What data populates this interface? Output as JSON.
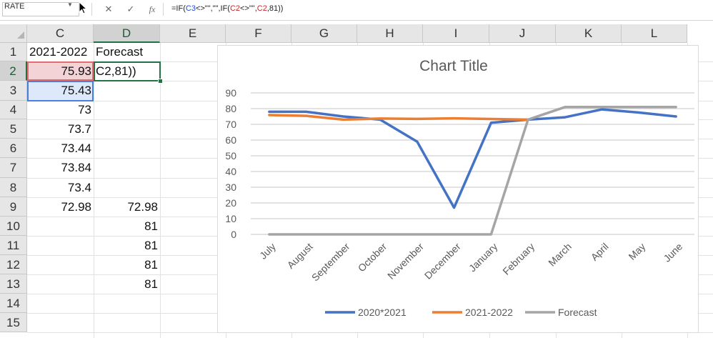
{
  "formula_bar": {
    "name_box": "RATE",
    "formula_parts": [
      {
        "text": "=IF(",
        "cls": ""
      },
      {
        "text": "C3",
        "cls": "fref-blue"
      },
      {
        "text": "<>\"\",\"\",IF(",
        "cls": ""
      },
      {
        "text": "C2",
        "cls": "fref-red"
      },
      {
        "text": "<>\"\",",
        "cls": ""
      },
      {
        "text": "C2",
        "cls": "fref-red"
      },
      {
        "text": ",81))",
        "cls": ""
      }
    ]
  },
  "icons": {
    "cancel": "✕",
    "enter": "✓",
    "fx": "fx"
  },
  "columns": [
    "C",
    "D",
    "E",
    "F",
    "G",
    "H",
    "I",
    "J",
    "K",
    "L"
  ],
  "rows": [
    "1",
    "2",
    "3",
    "4",
    "5",
    "6",
    "7",
    "8",
    "9",
    "10",
    "11",
    "12",
    "13",
    "14",
    "15"
  ],
  "cells": {
    "C1": "2021-2022",
    "D1": "Forecast",
    "C2": "75.93",
    "D2": "C2,81))",
    "C3": "75.43",
    "C4": "73",
    "C5": "73.7",
    "C6": "73.44",
    "C7": "73.84",
    "C8": "73.4",
    "C9": "72.98",
    "D9": "72.98",
    "D10": "81",
    "D11": "81",
    "D12": "81",
    "D13": "81"
  },
  "chart_data": {
    "type": "line",
    "title": "Chart Title",
    "categories": [
      "July",
      "August",
      "September",
      "October",
      "November",
      "December",
      "January",
      "February",
      "March",
      "April",
      "May",
      "June"
    ],
    "ylim": [
      0,
      90
    ],
    "yticks": [
      "0",
      "10",
      "20",
      "30",
      "40",
      "50",
      "60",
      "70",
      "80",
      "90"
    ],
    "grid": true,
    "legend_position": "bottom",
    "series": [
      {
        "name": "2020*2021",
        "color": "#4472c4",
        "values": [
          78,
          78,
          75,
          73,
          59,
          17,
          71,
          73,
          74.5,
          79.5,
          77.5,
          75
        ]
      },
      {
        "name": "2021-2022",
        "color": "#ed7d31",
        "values": [
          75.93,
          75.43,
          73,
          73.7,
          73.44,
          73.84,
          73.4,
          72.98,
          null,
          null,
          null,
          null
        ]
      },
      {
        "name": "Forecast",
        "color": "#a5a5a5",
        "values": [
          0,
          0,
          0,
          0,
          0,
          0,
          0,
          72.98,
          81,
          81,
          81,
          81
        ]
      }
    ]
  }
}
